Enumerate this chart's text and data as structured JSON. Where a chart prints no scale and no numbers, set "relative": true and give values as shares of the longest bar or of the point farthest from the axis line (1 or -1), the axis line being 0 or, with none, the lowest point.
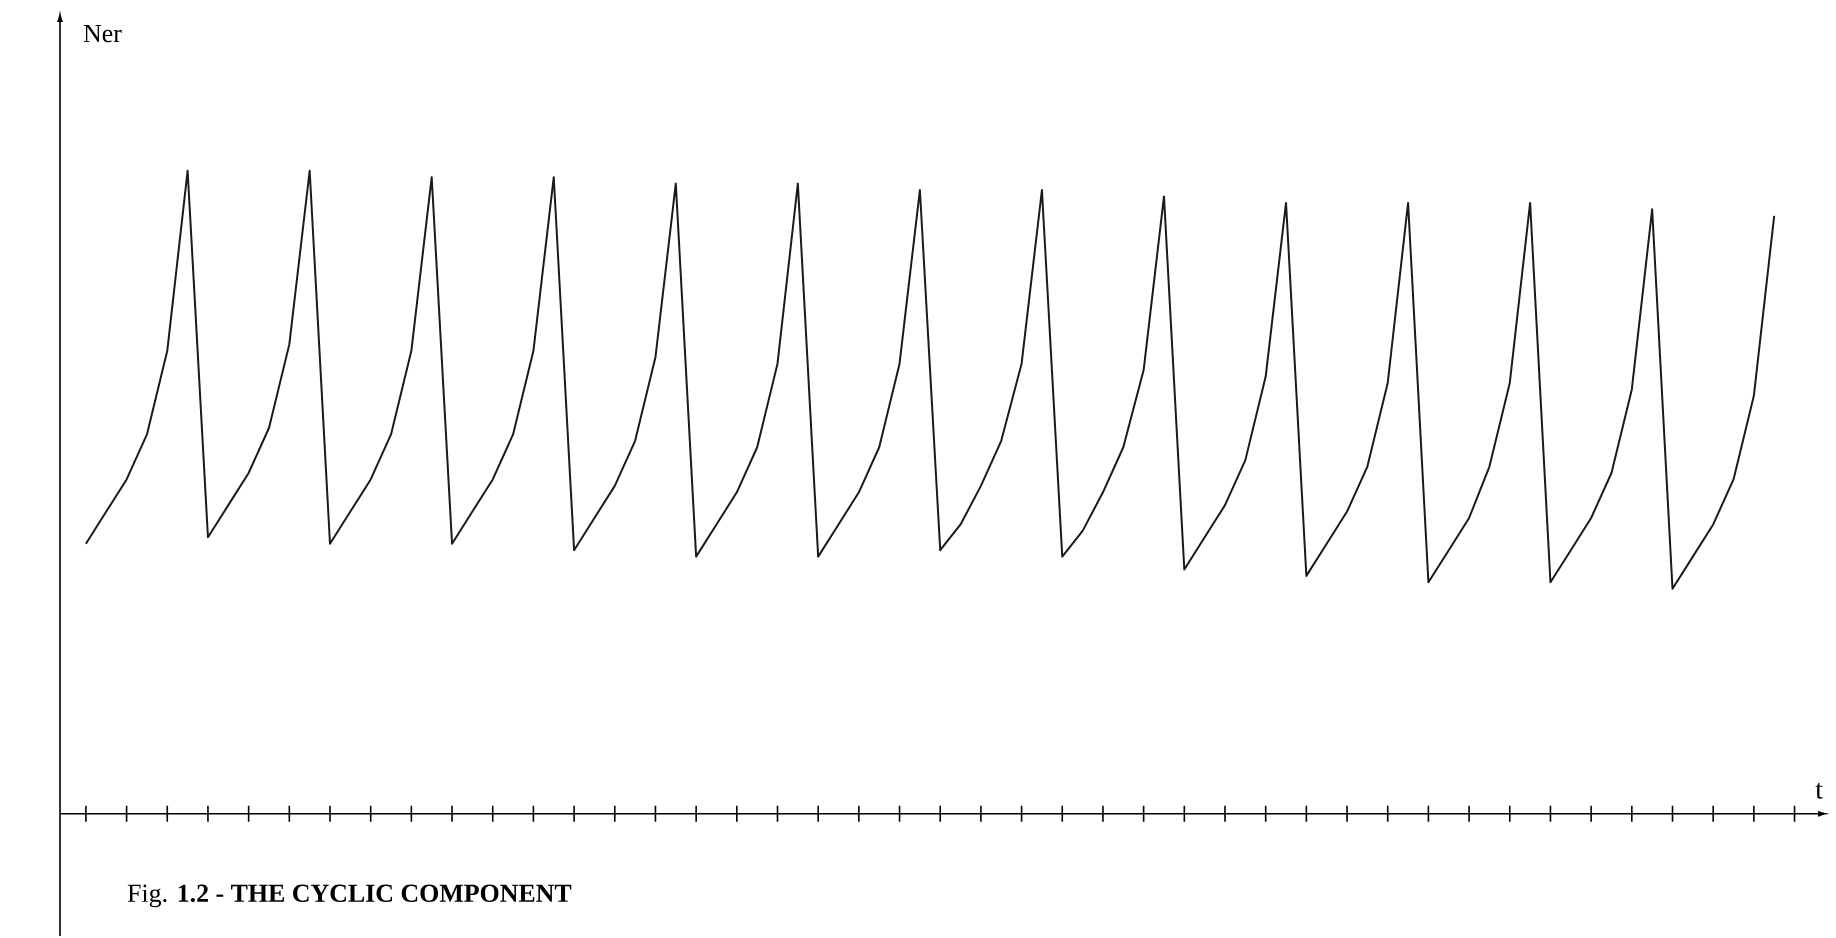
{
  "chart_data": {
    "type": "line",
    "title": "Fig. **1.2 - THE CYCLIC COMPONENT**",
    "xlabel": "t",
    "ylabel": "Ner",
    "relative": true,
    "categories": [
      null,
      null,
      null,
      null,
      null,
      null,
      null,
      null,
      null,
      null,
      null,
      null,
      null,
      null,
      null,
      null,
      null,
      null,
      null,
      null,
      null,
      null,
      null,
      null,
      null,
      null,
      null,
      null,
      null,
      null,
      null,
      null,
      null,
      null,
      null,
      null,
      null,
      null,
      null,
      null,
      null,
      null,
      null,
      null,
      null,
      null,
      null,
      null,
      null,
      null,
      null,
      null,
      null,
      null,
      null,
      null,
      null,
      null,
      null,
      null,
      null,
      null,
      null,
      null,
      null,
      null,
      null,
      null,
      null,
      null,
      null,
      null,
      null,
      null,
      null,
      null,
      null,
      null,
      null,
      null,
      null,
      null,
      null,
      null
    ],
    "series": [
      {
        "color": "#1a1a1a",
        "values": [
          0.42,
          0.47,
          0.52,
          0.59,
          0.72,
          1.0,
          0.43,
          0.48,
          0.53,
          0.6,
          0.73,
          1.0,
          0.42,
          0.47,
          0.52,
          0.59,
          0.72,
          0.99,
          0.42,
          0.47,
          0.52,
          0.59,
          0.72,
          0.99,
          0.41,
          0.46,
          0.51,
          0.58,
          0.71,
          0.98,
          0.4,
          0.45,
          0.5,
          0.57,
          0.7,
          0.98,
          0.4,
          0.45,
          0.5,
          0.57,
          0.7,
          0.97,
          0.41,
          0.45,
          0.51,
          0.58,
          0.7,
          0.97,
          0.4,
          0.44,
          0.5,
          0.57,
          0.69,
          0.96,
          0.38,
          0.43,
          0.48,
          0.55,
          0.68,
          0.95,
          0.37,
          0.42,
          0.47,
          0.54,
          0.67,
          0.95,
          0.36,
          0.41,
          0.46,
          0.54,
          0.67,
          0.95,
          0.36,
          0.41,
          0.46,
          0.53,
          0.66,
          0.94,
          0.35,
          0.4,
          0.45,
          0.52,
          0.65,
          0.93
        ]
      }
    ]
  }
}
